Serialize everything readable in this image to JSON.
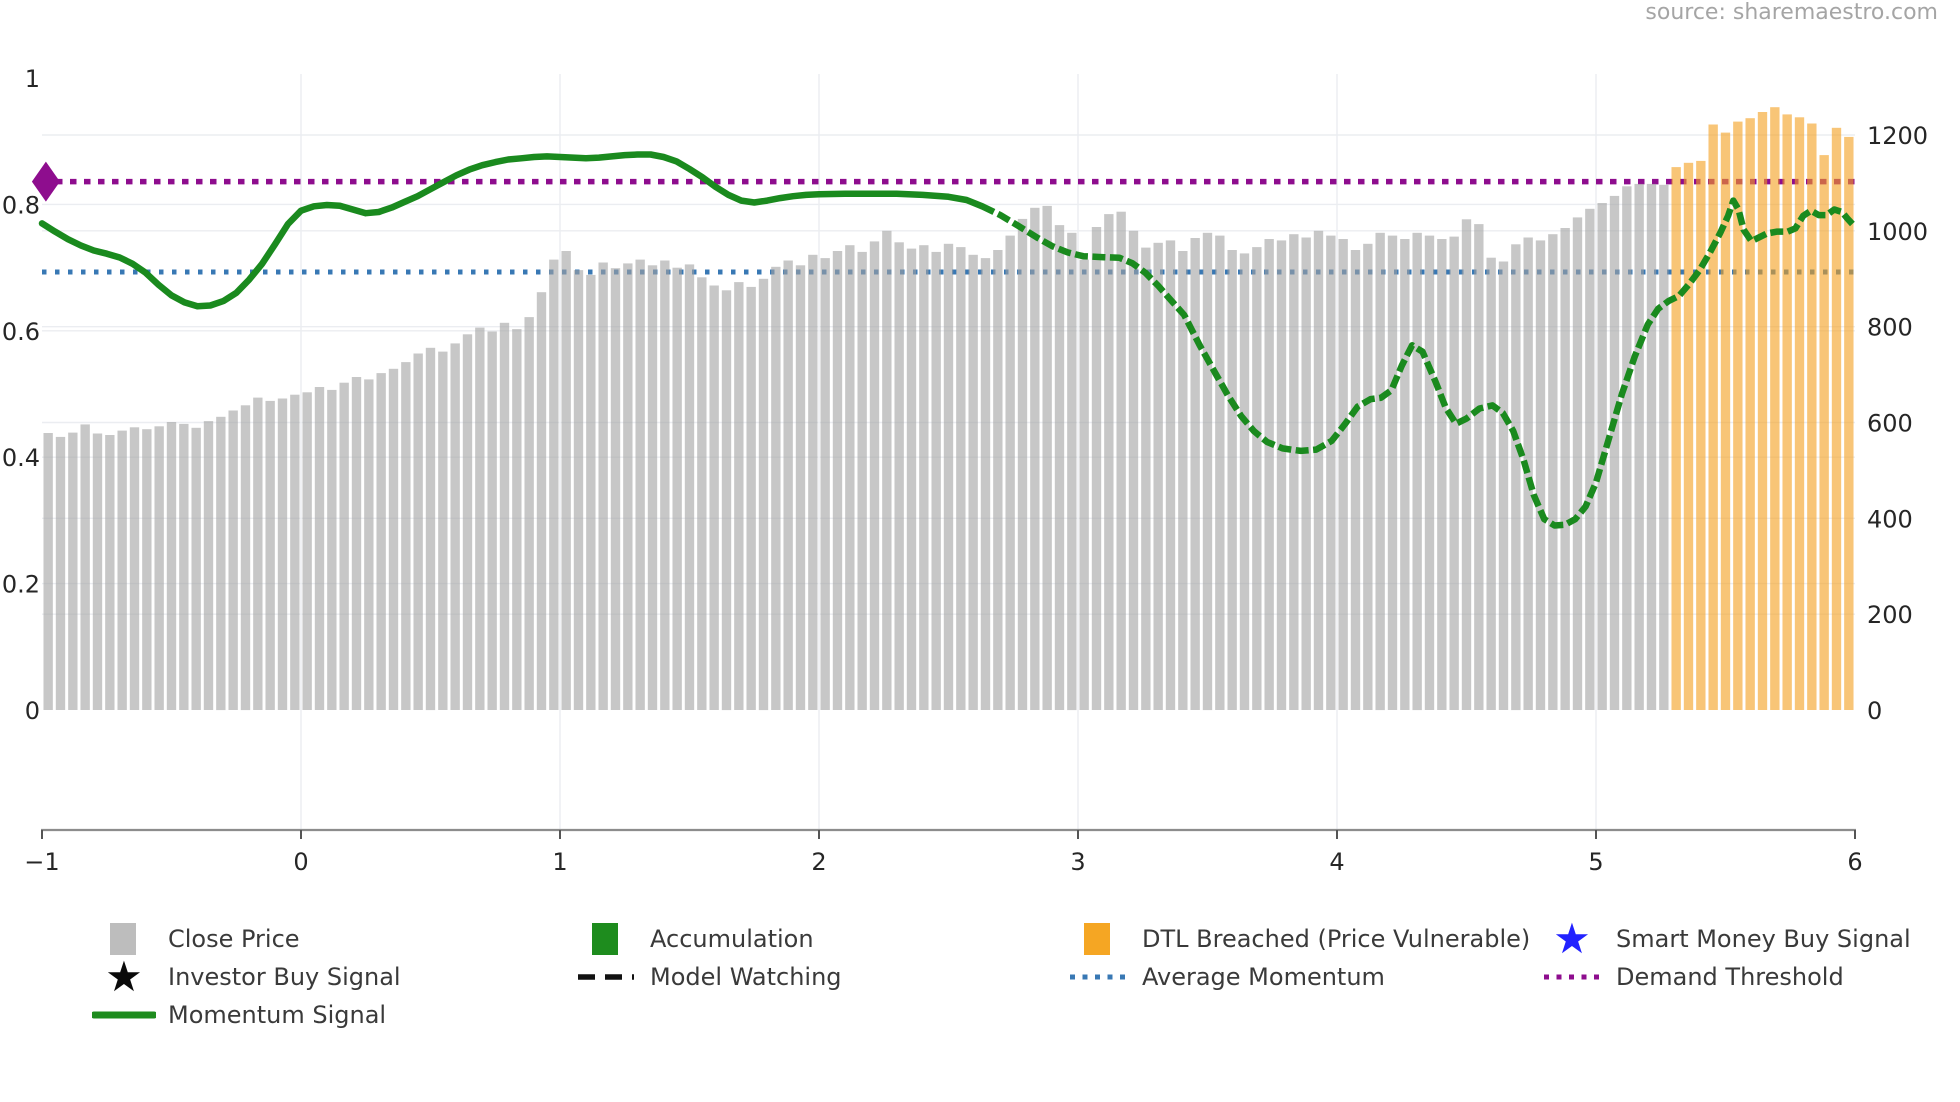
{
  "source_text": "source: sharemaestro.com",
  "colors": {
    "close_price_bar": "#a3a3a3",
    "dtl_breached_bar": "#f5a01d",
    "bar_opacity": 0.6,
    "momentum_line": "#1a8a1e",
    "average_momentum_line": "#3878b4",
    "demand_threshold_line": "#8e0d8e",
    "demand_marker": "#8e0d8e",
    "grid": "#ebedf1",
    "axis_spine": "#8c8c8c",
    "tick_mark": "#555555",
    "tick_text": "#262626",
    "legend_text": "#3a3a3a",
    "source_text_color": "#a5a5a5",
    "legend_close_price": "#bdbdbd",
    "legend_accumulation": "#1e8c1e",
    "legend_dtl_breached": "#f5a623",
    "smart_money_star": "#2222ff",
    "investor_star": "#0a0a0a",
    "model_watching": "#111111"
  },
  "legend": {
    "items": [
      {
        "label": "Close Price",
        "marker": "square",
        "color": "#bdbdbd"
      },
      {
        "label": "Accumulation",
        "marker": "square",
        "color": "#1e8c1e"
      },
      {
        "label": "DTL Breached (Price Vulnerable)",
        "marker": "square",
        "color": "#f5a623"
      },
      {
        "label": "Smart Money Buy Signal",
        "marker": "star",
        "color": "#2222ff"
      },
      {
        "label": "Investor Buy Signal",
        "marker": "star",
        "color": "#0a0a0a"
      },
      {
        "label": "Model Watching",
        "marker": "dashed-line",
        "color": "#111111"
      },
      {
        "label": "Average Momentum",
        "marker": "dotted-line",
        "color": "#3878b4"
      },
      {
        "label": "Demand Threshold",
        "marker": "dotted-line",
        "color": "#8e0d8e"
      },
      {
        "label": "Momentum Signal",
        "marker": "line",
        "color": "#1e8c1e"
      }
    ]
  },
  "chart_data": {
    "type": "bar+line",
    "title": "",
    "xlabel": "",
    "ylabel_left": "",
    "ylabel_right": "",
    "grid": true,
    "x_axis": {
      "range": [
        -1,
        6
      ],
      "ticks": [
        {
          "label": "−1",
          "value": -1
        },
        {
          "label": "0",
          "value": 0
        },
        {
          "label": "1",
          "value": 1
        },
        {
          "label": "2",
          "value": 2
        },
        {
          "label": "3",
          "value": 3
        },
        {
          "label": "4",
          "value": 4
        },
        {
          "label": "5",
          "value": 5
        },
        {
          "label": "6",
          "value": 6
        }
      ]
    },
    "left_axis": {
      "range": [
        0,
        1
      ],
      "ticks": [
        {
          "label": "1",
          "value": 1
        },
        {
          "label": "0.8",
          "value": 0.8
        },
        {
          "label": "0.6",
          "value": 0.6
        },
        {
          "label": "0.4",
          "value": 0.4
        },
        {
          "label": "0.2",
          "value": 0.2
        },
        {
          "label": "0",
          "value": 0
        }
      ]
    },
    "right_axis": {
      "range": [
        0,
        1200
      ],
      "ticks": [
        {
          "label": "1200",
          "value": 1200
        },
        {
          "label": "1000",
          "value": 1000
        },
        {
          "label": "800",
          "value": 800
        },
        {
          "label": "600",
          "value": 600
        },
        {
          "label": "400",
          "value": 400
        },
        {
          "label": "200",
          "value": 200
        },
        {
          "label": "0",
          "value": 0
        }
      ]
    },
    "bars": {
      "series": "Close Price",
      "axis": "right",
      "count": 147,
      "dtl_breached_start_index": 132,
      "values": [
        578,
        570,
        579,
        596,
        577,
        574,
        583,
        590,
        586,
        592,
        601,
        597,
        589,
        603,
        612,
        625,
        636,
        652,
        645,
        650,
        658,
        663,
        674,
        668,
        683,
        695,
        690,
        703,
        712,
        726,
        744,
        756,
        748,
        765,
        784,
        798,
        790,
        808,
        795,
        820,
        872,
        940,
        958,
        918,
        908,
        934,
        922,
        932,
        940,
        928,
        938,
        923,
        930,
        903,
        886,
        876,
        893,
        883,
        900,
        925,
        938,
        928,
        950,
        943,
        958,
        970,
        956,
        978,
        1000,
        976,
        963,
        970,
        956,
        973,
        966,
        950,
        943,
        960,
        990,
        1025,
        1048,
        1052,
        1012,
        996,
        940,
        1008,
        1035,
        1040,
        1000,
        965,
        975,
        980,
        958,
        985,
        996,
        990,
        960,
        953,
        966,
        983,
        980,
        993,
        986,
        1000,
        990,
        983,
        960,
        973,
        996,
        990,
        983,
        996,
        990,
        983,
        988,
        1024,
        1014,
        944,
        936,
        972,
        986,
        980,
        993,
        1006,
        1028,
        1046,
        1058,
        1073,
        1093,
        1098,
        1098,
        1096,
        1133,
        1142,
        1146,
        1222,
        1205,
        1228,
        1235,
        1248,
        1258,
        1243,
        1237,
        1224,
        1158,
        1215,
        1196
      ]
    },
    "momentum_line": {
      "series": "Momentum Signal",
      "axis": "left",
      "solid_style_meaning": "Accumulation",
      "dashed_style_meaning": "Model Watching",
      "dashed_from_x": 2.63,
      "points": [
        [
          -1.0,
          0.77
        ],
        [
          -0.95,
          0.757
        ],
        [
          -0.9,
          0.745
        ],
        [
          -0.85,
          0.735
        ],
        [
          -0.8,
          0.727
        ],
        [
          -0.75,
          0.722
        ],
        [
          -0.7,
          0.716
        ],
        [
          -0.65,
          0.706
        ],
        [
          -0.6,
          0.692
        ],
        [
          -0.55,
          0.673
        ],
        [
          -0.5,
          0.656
        ],
        [
          -0.45,
          0.645
        ],
        [
          -0.4,
          0.639
        ],
        [
          -0.35,
          0.64
        ],
        [
          -0.3,
          0.647
        ],
        [
          -0.25,
          0.66
        ],
        [
          -0.2,
          0.681
        ],
        [
          -0.15,
          0.706
        ],
        [
          -0.1,
          0.737
        ],
        [
          -0.05,
          0.769
        ],
        [
          0.0,
          0.79
        ],
        [
          0.05,
          0.797
        ],
        [
          0.1,
          0.799
        ],
        [
          0.15,
          0.798
        ],
        [
          0.2,
          0.792
        ],
        [
          0.25,
          0.786
        ],
        [
          0.3,
          0.788
        ],
        [
          0.35,
          0.795
        ],
        [
          0.4,
          0.804
        ],
        [
          0.45,
          0.813
        ],
        [
          0.5,
          0.824
        ],
        [
          0.55,
          0.835
        ],
        [
          0.6,
          0.846
        ],
        [
          0.65,
          0.855
        ],
        [
          0.7,
          0.862
        ],
        [
          0.75,
          0.867
        ],
        [
          0.8,
          0.871
        ],
        [
          0.85,
          0.873
        ],
        [
          0.9,
          0.875
        ],
        [
          0.95,
          0.876
        ],
        [
          1.0,
          0.875
        ],
        [
          1.05,
          0.874
        ],
        [
          1.1,
          0.873
        ],
        [
          1.15,
          0.874
        ],
        [
          1.2,
          0.876
        ],
        [
          1.25,
          0.878
        ],
        [
          1.3,
          0.879
        ],
        [
          1.35,
          0.879
        ],
        [
          1.4,
          0.875
        ],
        [
          1.45,
          0.868
        ],
        [
          1.5,
          0.856
        ],
        [
          1.55,
          0.843
        ],
        [
          1.6,
          0.828
        ],
        [
          1.65,
          0.815
        ],
        [
          1.7,
          0.806
        ],
        [
          1.75,
          0.803
        ],
        [
          1.8,
          0.806
        ],
        [
          1.85,
          0.81
        ],
        [
          1.9,
          0.813
        ],
        [
          1.95,
          0.815
        ],
        [
          2.0,
          0.816
        ],
        [
          2.1,
          0.817
        ],
        [
          2.2,
          0.817
        ],
        [
          2.3,
          0.817
        ],
        [
          2.4,
          0.815
        ],
        [
          2.5,
          0.812
        ],
        [
          2.57,
          0.807
        ],
        [
          2.63,
          0.797
        ],
        [
          2.7,
          0.783
        ],
        [
          2.77,
          0.766
        ],
        [
          2.84,
          0.748
        ],
        [
          2.9,
          0.734
        ],
        [
          2.96,
          0.724
        ],
        [
          3.02,
          0.718
        ],
        [
          3.1,
          0.7165
        ],
        [
          3.16,
          0.7155
        ],
        [
          3.21,
          0.707
        ],
        [
          3.26,
          0.692
        ],
        [
          3.31,
          0.671
        ],
        [
          3.36,
          0.648
        ],
        [
          3.41,
          0.625
        ],
        [
          3.47,
          0.577
        ],
        [
          3.53,
          0.533
        ],
        [
          3.58,
          0.497
        ],
        [
          3.63,
          0.465
        ],
        [
          3.68,
          0.441
        ],
        [
          3.73,
          0.424
        ],
        [
          3.79,
          0.414
        ],
        [
          3.86,
          0.41
        ],
        [
          3.92,
          0.412
        ],
        [
          3.98,
          0.426
        ],
        [
          4.03,
          0.452
        ],
        [
          4.08,
          0.48
        ],
        [
          4.13,
          0.492
        ],
        [
          4.17,
          0.494
        ],
        [
          4.21,
          0.506
        ],
        [
          4.25,
          0.545
        ],
        [
          4.29,
          0.577
        ],
        [
          4.33,
          0.567
        ],
        [
          4.38,
          0.52
        ],
        [
          4.42,
          0.478
        ],
        [
          4.46,
          0.453
        ],
        [
          4.5,
          0.461
        ],
        [
          4.55,
          0.477
        ],
        [
          4.6,
          0.482
        ],
        [
          4.64,
          0.47
        ],
        [
          4.68,
          0.442
        ],
        [
          4.72,
          0.396
        ],
        [
          4.76,
          0.34
        ],
        [
          4.8,
          0.302
        ],
        [
          4.84,
          0.292
        ],
        [
          4.88,
          0.293
        ],
        [
          4.92,
          0.302
        ],
        [
          4.96,
          0.322
        ],
        [
          5.0,
          0.36
        ],
        [
          5.05,
          0.43
        ],
        [
          5.1,
          0.5
        ],
        [
          5.15,
          0.56
        ],
        [
          5.2,
          0.61
        ],
        [
          5.24,
          0.635
        ],
        [
          5.28,
          0.647
        ],
        [
          5.32,
          0.655
        ],
        [
          5.36,
          0.674
        ],
        [
          5.4,
          0.696
        ],
        [
          5.44,
          0.724
        ],
        [
          5.48,
          0.755
        ],
        [
          5.51,
          0.782
        ],
        [
          5.53,
          0.806
        ],
        [
          5.55,
          0.792
        ],
        [
          5.57,
          0.76
        ],
        [
          5.6,
          0.742
        ],
        [
          5.63,
          0.748
        ],
        [
          5.66,
          0.754
        ],
        [
          5.7,
          0.757
        ],
        [
          5.74,
          0.757
        ],
        [
          5.77,
          0.762
        ],
        [
          5.8,
          0.782
        ],
        [
          5.83,
          0.79
        ],
        [
          5.86,
          0.783
        ],
        [
          5.89,
          0.783
        ],
        [
          5.92,
          0.792
        ],
        [
          5.95,
          0.788
        ],
        [
          5.97,
          0.778
        ],
        [
          5.99,
          0.769
        ]
      ]
    },
    "average_momentum": {
      "value": 0.693,
      "axis": "left"
    },
    "demand_threshold": {
      "value": 0.836,
      "axis": "left",
      "marker_x": -0.985
    }
  }
}
